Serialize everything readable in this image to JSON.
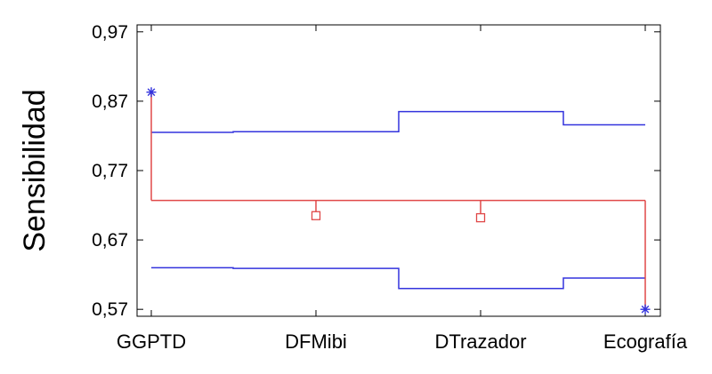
{
  "chart_data": {
    "type": "line",
    "title": "",
    "xlabel": "",
    "ylabel": "Sensibilidad",
    "ylim": [
      0.56,
      0.98
    ],
    "y_ticks": [
      "0,97",
      "0,87",
      "0,77",
      "0,67",
      "0,57"
    ],
    "y_tick_values": [
      0.97,
      0.87,
      0.77,
      0.67,
      0.57
    ],
    "categories": [
      "GGPTD",
      "DFMibi",
      "DTrazador",
      "Ecografía"
    ],
    "center_line": 0.727,
    "upper_limit_steps": [
      0.825,
      0.826,
      0.855,
      0.836
    ],
    "lower_limit_steps": [
      0.63,
      0.629,
      0.6,
      0.615
    ],
    "points": [
      {
        "category": "GGPTD",
        "value": 0.883,
        "marker": "asterisk"
      },
      {
        "category": "DFMibi",
        "value": 0.705,
        "marker": "square"
      },
      {
        "category": "DTrazador",
        "value": 0.702,
        "marker": "square"
      },
      {
        "category": "Ecografía",
        "value": 0.57,
        "marker": "asterisk"
      }
    ],
    "grid": false,
    "colors": {
      "limits": "#3333dd",
      "center": "#e04848",
      "square_marker": "#e04848",
      "asterisk_marker": "#3333dd",
      "axis": "#000000"
    }
  }
}
